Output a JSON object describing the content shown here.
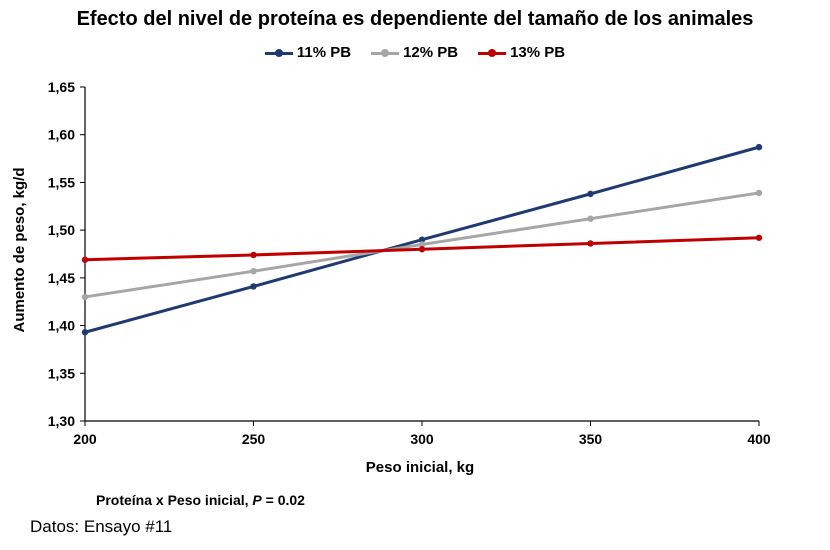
{
  "chart_data": {
    "type": "line",
    "title": "Efecto del nivel de proteína es dependiente del tamaño de los animales",
    "xlabel": "Peso inicial,  kg",
    "ylabel": "Aumento de peso, kg/d",
    "x": [
      200,
      250,
      300,
      350,
      400
    ],
    "xlim": [
      200,
      400
    ],
    "ylim": [
      1.3,
      1.65
    ],
    "x_ticks": [
      "200",
      "250",
      "300",
      "350",
      "400"
    ],
    "y_ticks": [
      "1,30",
      "1,35",
      "1,40",
      "1,45",
      "1,50",
      "1,55",
      "1,60",
      "1,65"
    ],
    "grid": false,
    "legend_position": "top-center",
    "series": [
      {
        "name": "11% PB",
        "color": "#1f3a73",
        "values": [
          1.393,
          1.441,
          1.49,
          1.538,
          1.587
        ]
      },
      {
        "name": "12% PB",
        "color": "#a6a6a6",
        "values": [
          1.43,
          1.457,
          1.485,
          1.512,
          1.539
        ]
      },
      {
        "name": "13% PB",
        "color": "#c00000",
        "values": [
          1.469,
          1.474,
          1.48,
          1.486,
          1.492
        ]
      }
    ]
  },
  "notes": {
    "stats_prefix": "Proteína x Peso inicial, ",
    "stats_p": "P",
    "stats_suffix": " = 0.02",
    "source": "Datos: Ensayo #11"
  }
}
